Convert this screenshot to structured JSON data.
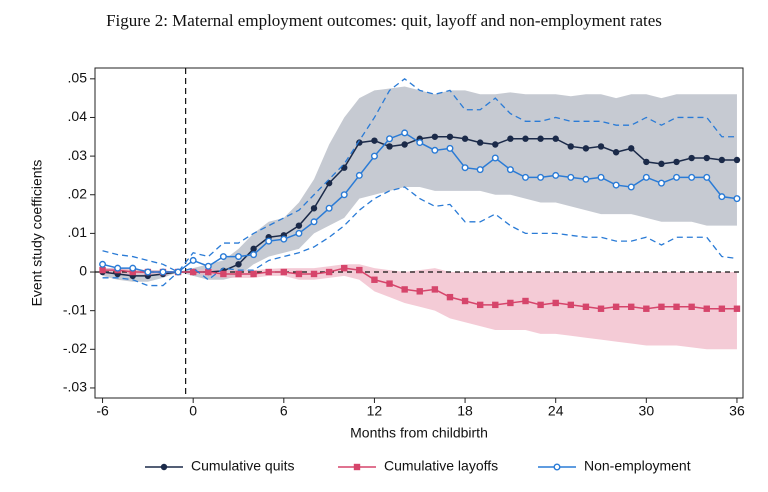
{
  "chart_data": {
    "type": "line",
    "title": "Figure 2: Maternal employment outcomes: quit, layoff and non-employment rates",
    "x_label": "Months from childbirth",
    "y_label": "Event study coefficients",
    "x": [
      -6,
      -5,
      -4,
      -3,
      -2,
      -1,
      0,
      1,
      2,
      3,
      4,
      5,
      6,
      7,
      8,
      9,
      10,
      11,
      12,
      13,
      14,
      15,
      16,
      17,
      18,
      19,
      20,
      21,
      22,
      23,
      24,
      25,
      26,
      27,
      28,
      29,
      30,
      31,
      32,
      33,
      34,
      35,
      36
    ],
    "xlim": [
      -6.5,
      36.4
    ],
    "ylim": [
      -0.0326,
      0.0528
    ],
    "xticks": [
      -6,
      0,
      6,
      12,
      18,
      24,
      30,
      36
    ],
    "yticks": [
      {
        "value": -0.03,
        "label": "-.03"
      },
      {
        "value": -0.02,
        "label": "-.02"
      },
      {
        "value": -0.01,
        "label": "-.01"
      },
      0,
      {
        "value": 0.01,
        "label": ".01"
      },
      {
        "value": 0.02,
        "label": ".02"
      },
      {
        "value": 0.03,
        "label": ".03"
      },
      {
        "value": 0.04,
        "label": ".04"
      },
      {
        "value": 0.05,
        "label": ".05"
      }
    ],
    "reference_x": -0.5,
    "reference_y": 0,
    "series": [
      {
        "name": "Cumulative quits",
        "color": "#1b2a49",
        "marker": "circle",
        "band_style": "fill",
        "band_color": "#aeb3bf",
        "values": [
          0,
          -0.0005,
          -0.001,
          -0.001,
          -0.0005,
          0,
          0,
          0,
          0.0003,
          0.002,
          0.006,
          0.009,
          0.0095,
          0.012,
          0.0165,
          0.023,
          0.027,
          0.0335,
          0.034,
          0.0325,
          0.033,
          0.0345,
          0.035,
          0.035,
          0.0345,
          0.0335,
          0.033,
          0.0345,
          0.0345,
          0.0345,
          0.0345,
          0.0325,
          0.032,
          0.0325,
          0.031,
          0.032,
          0.0285,
          0.028,
          0.0285,
          0.0295,
          0.0295,
          0.029,
          0.029
        ],
        "band_high": [
          0.001,
          0.001,
          0.0005,
          0.0005,
          0.0005,
          0,
          0.001,
          0.002,
          0.003,
          0.006,
          0.01,
          0.013,
          0.014,
          0.018,
          0.024,
          0.033,
          0.04,
          0.045,
          0.047,
          0.0475,
          0.048,
          0.047,
          0.046,
          0.047,
          0.047,
          0.046,
          0.046,
          0.0465,
          0.046,
          0.046,
          0.046,
          0.0455,
          0.046,
          0.046,
          0.045,
          0.046,
          0.046,
          0.045,
          0.046,
          0.046,
          0.046,
          0.046,
          0.046
        ],
        "band_low": [
          -0.001,
          -0.002,
          -0.0025,
          -0.0025,
          -0.0015,
          0,
          -0.001,
          -0.002,
          -0.002,
          -0.001,
          0.002,
          0.004,
          0.005,
          0.006,
          0.01,
          0.012,
          0.014,
          0.019,
          0.02,
          0.021,
          0.022,
          0.022,
          0.021,
          0.021,
          0.021,
          0.021,
          0.02,
          0.02,
          0.019,
          0.018,
          0.018,
          0.017,
          0.016,
          0.015,
          0.015,
          0.015,
          0.014,
          0.013,
          0.013,
          0.013,
          0.012,
          0.012,
          0.012
        ]
      },
      {
        "name": "Cumulative layoffs",
        "color": "#d6456b",
        "marker": "square",
        "band_style": "fill",
        "band_color": "#f0b5c4",
        "values": [
          0.0005,
          0.0005,
          0,
          0,
          0,
          0,
          0,
          0,
          -0.0005,
          -0.0005,
          -0.0005,
          0,
          0,
          -0.0005,
          -0.0005,
          0,
          0.001,
          0.0005,
          -0.002,
          -0.003,
          -0.0045,
          -0.005,
          -0.0045,
          -0.0065,
          -0.0075,
          -0.0085,
          -0.0085,
          -0.008,
          -0.0075,
          -0.0085,
          -0.008,
          -0.0085,
          -0.009,
          -0.0095,
          -0.009,
          -0.009,
          -0.0095,
          -0.009,
          -0.009,
          -0.009,
          -0.0095,
          -0.0095,
          -0.0095
        ],
        "band_high": [
          0.001,
          0.001,
          0.0008,
          0.0005,
          0.0004,
          0,
          0.0005,
          0.0008,
          0.0005,
          0.0005,
          0.0005,
          0.0008,
          0.001,
          0.001,
          0.001,
          0.0015,
          0.002,
          0.002,
          0.001,
          0.0005,
          0,
          0.0005,
          0.001,
          0,
          0,
          0,
          0,
          0,
          0,
          0,
          0,
          0,
          0,
          0,
          0,
          0,
          0,
          0,
          0,
          0,
          0,
          0,
          0
        ],
        "band_low": [
          -0.0005,
          -0.0005,
          -0.0008,
          -0.0005,
          -0.0004,
          0,
          -0.0005,
          -0.0008,
          -0.0015,
          -0.0015,
          -0.0015,
          -0.001,
          -0.001,
          -0.002,
          -0.002,
          -0.0015,
          -0.001,
          -0.002,
          -0.005,
          -0.0065,
          -0.008,
          -0.009,
          -0.01,
          -0.012,
          -0.013,
          -0.014,
          -0.015,
          -0.015,
          -0.015,
          -0.016,
          -0.016,
          -0.0165,
          -0.017,
          -0.0175,
          -0.018,
          -0.0185,
          -0.019,
          -0.019,
          -0.019,
          -0.0195,
          -0.02,
          -0.02,
          -0.02
        ]
      },
      {
        "name": "Non-employment",
        "color": "#2a7bd6",
        "marker": "hollow-circle",
        "band_style": "dashed",
        "band_color": "#2a7bd6",
        "values": [
          0.002,
          0.001,
          0.001,
          0,
          0,
          0,
          0.003,
          0.0015,
          0.004,
          0.004,
          0.0045,
          0.008,
          0.0085,
          0.01,
          0.013,
          0.0165,
          0.02,
          0.025,
          0.03,
          0.0345,
          0.036,
          0.0335,
          0.0315,
          0.032,
          0.027,
          0.0265,
          0.0295,
          0.0265,
          0.0245,
          0.0245,
          0.025,
          0.0245,
          0.024,
          0.0245,
          0.0225,
          0.022,
          0.0245,
          0.023,
          0.0245,
          0.0245,
          0.0245,
          0.0195,
          0.019
        ],
        "band_high": [
          0.0055,
          0.0045,
          0.004,
          0.003,
          0.002,
          0,
          0.005,
          0.004,
          0.0075,
          0.0075,
          0.01,
          0.012,
          0.014,
          0.016,
          0.02,
          0.024,
          0.028,
          0.034,
          0.04,
          0.047,
          0.05,
          0.047,
          0.046,
          0.047,
          0.042,
          0.042,
          0.045,
          0.041,
          0.039,
          0.039,
          0.04,
          0.039,
          0.039,
          0.039,
          0.038,
          0.038,
          0.04,
          0.038,
          0.04,
          0.04,
          0.04,
          0.035,
          0.035
        ],
        "band_low": [
          -0.0015,
          -0.0015,
          -0.002,
          -0.0035,
          -0.0035,
          0,
          0.001,
          -0.002,
          0.001,
          0.0005,
          0.0005,
          0.003,
          0.004,
          0.005,
          0.0065,
          0.009,
          0.012,
          0.016,
          0.019,
          0.021,
          0.022,
          0.019,
          0.017,
          0.0175,
          0.013,
          0.013,
          0.015,
          0.012,
          0.01,
          0.01,
          0.01,
          0.0095,
          0.009,
          0.009,
          0.008,
          0.008,
          0.009,
          0.007,
          0.009,
          0.009,
          0.009,
          0.004,
          0.0035
        ]
      }
    ]
  }
}
